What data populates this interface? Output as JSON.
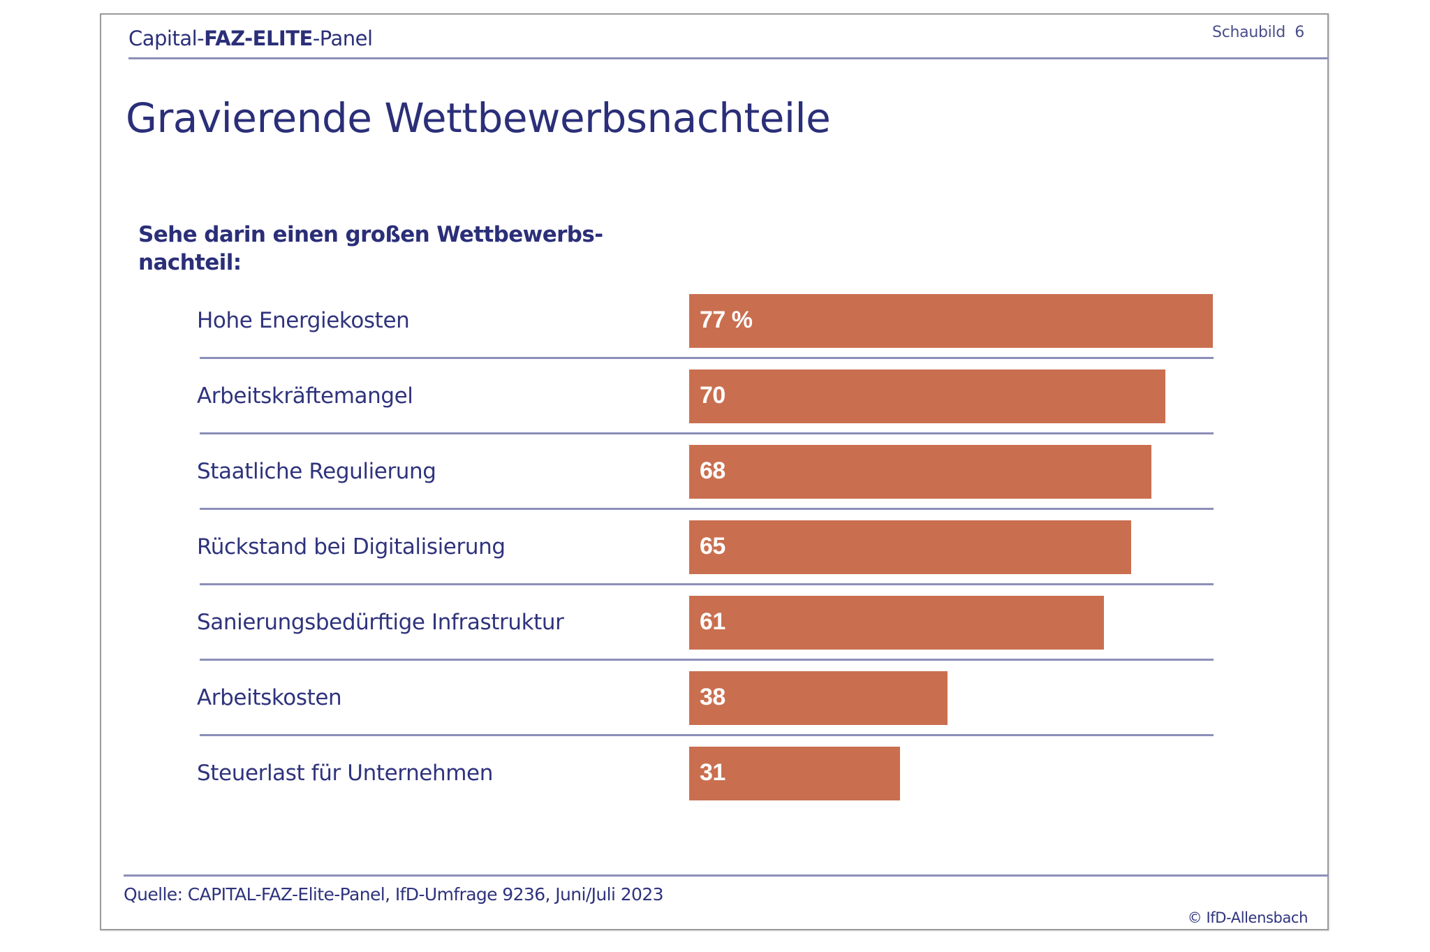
{
  "header": {
    "brand_part1": "Capital-",
    "brand_part2": "FAZ-ELITE",
    "brand_part3": "-Panel",
    "figure_label": "Schaubild  6"
  },
  "title": "Gravierende Wettbewerbsnachteile",
  "question_line1": "Sehe darin einen großen Wettbewerbs-",
  "question_line2": "nachteil:",
  "colors": {
    "bar": "#c96f50",
    "text": "#2b2f78",
    "rule": "#8c8fb8"
  },
  "chart_data": {
    "type": "bar",
    "orientation": "horizontal",
    "title": "Gravierende Wettbewerbsnachteile",
    "subtitle": "Sehe darin einen großen Wettbewerbsnachteil:",
    "unit": "%",
    "xlabel": "",
    "ylabel": "",
    "xlim": [
      0,
      77
    ],
    "grid": false,
    "categories": [
      "Hohe Energiekosten",
      "Arbeitskräftemangel",
      "Staatliche Regulierung",
      "Rückstand bei Digitalisierung",
      "Sanierungsbedürftige Infrastruktur",
      "Arbeitskosten",
      "Steuerlast für Unternehmen"
    ],
    "values": [
      77,
      70,
      68,
      65,
      61,
      38,
      31
    ],
    "value_labels": [
      "77 %",
      "70",
      "68",
      "65",
      "61",
      "38",
      "31"
    ]
  },
  "footer": {
    "source": "Quelle: CAPITAL-FAZ-Elite-Panel, IfD-Umfrage 9236, Juni/Juli 2023",
    "copyright": "© IfD-Allensbach"
  }
}
